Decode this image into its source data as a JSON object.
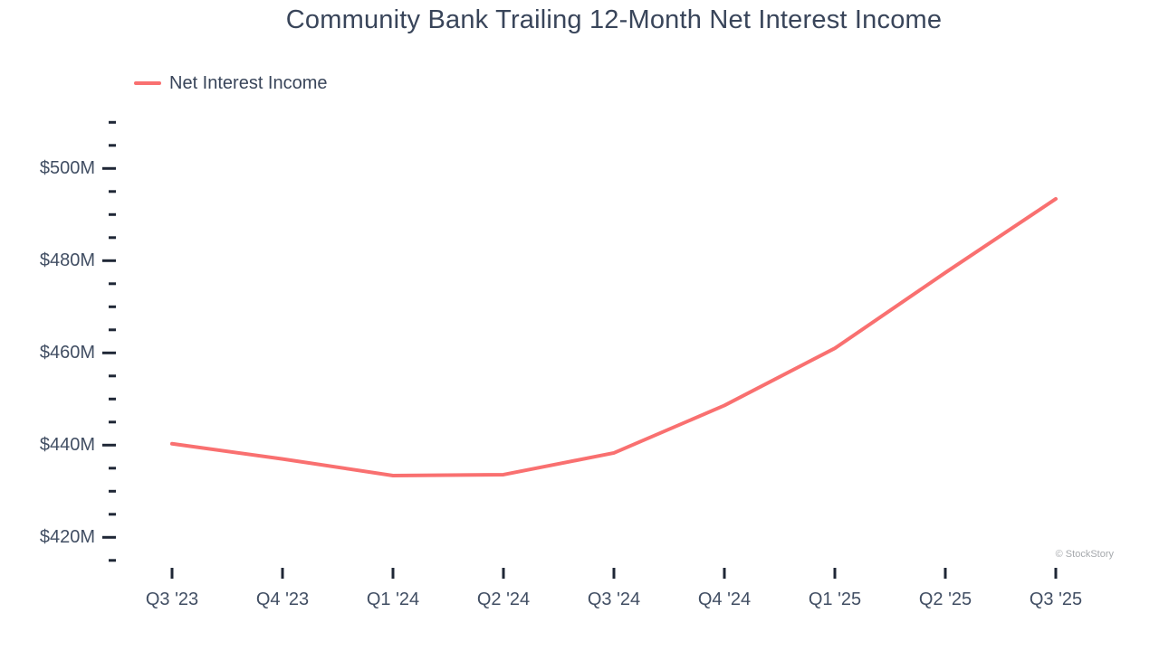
{
  "page": {
    "background": "#ffffff"
  },
  "header": {
    "title": "Community Bank Trailing 12-Month Net Interest Income"
  },
  "legend": {
    "items": [
      {
        "label": "Net Interest Income",
        "color": "#f97070"
      }
    ]
  },
  "watermark": "© StockStory",
  "colors": {
    "series_line": "#f97070",
    "tick": "#1f2736",
    "axis_text": "#414e63",
    "title_text": "#39455a",
    "watermark_text": "#a6a9ad"
  },
  "chart_data": {
    "type": "line",
    "title": "Community Bank Trailing 12-Month Net Interest Income",
    "categories": [
      "Q3 '23",
      "Q4 '23",
      "Q1 '24",
      "Q2 '24",
      "Q3 '24",
      "Q4 '24",
      "Q1 '25",
      "Q2 '25",
      "Q3 '25"
    ],
    "series": [
      {
        "name": "Net Interest Income",
        "color": "#f97070",
        "values": [
          440.3,
          437.0,
          433.4,
          433.6,
          438.3,
          448.6,
          461.0,
          477.4,
          493.4
        ]
      }
    ],
    "xlabel": "",
    "ylabel": "",
    "unit": "USD millions",
    "ylim": [
      415,
      510
    ],
    "y_major_step": 20,
    "y_minor_step": 5,
    "y_major_ticks": [
      {
        "value": 420,
        "label": "$420M"
      },
      {
        "value": 440,
        "label": "$440M"
      },
      {
        "value": 460,
        "label": "$460M"
      },
      {
        "value": 480,
        "label": "$480M"
      },
      {
        "value": 500,
        "label": "$500M"
      }
    ],
    "grid": false,
    "legend_position": "top-left"
  }
}
